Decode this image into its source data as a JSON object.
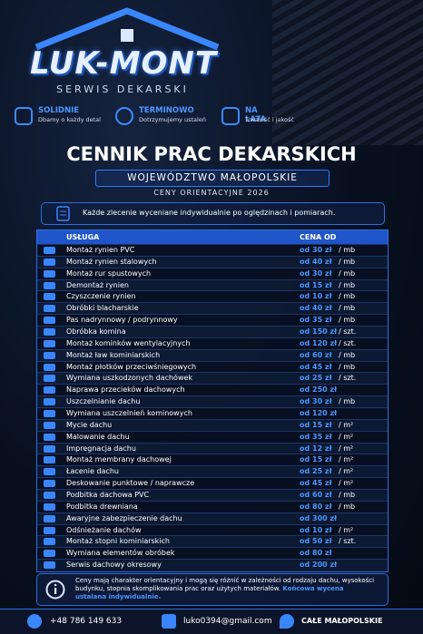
{
  "header": {
    "logo": "LUK-MONT",
    "tagline": "SERWIS DEKARSKI"
  },
  "features": [
    {
      "title": "SOLIDNIE",
      "text": "Dbamy o każdy detal"
    },
    {
      "title": "TERMINOWO",
      "text": "Dotrzymujemy ustaleń"
    },
    {
      "title": "NA LATA",
      "text": "Trwałość i jakość"
    }
  ],
  "title": "CENNIK PRAC DEKARSKICH",
  "region": "WOJEWÓDZTWO MAŁOPOLSKIE",
  "subtitle": "CENY ORIENTACYJNE 2026",
  "info": "Każde zlecenie wyceniane indywidualnie po oględzinach i pomiarach.",
  "table": {
    "columns": [
      "USŁUGA",
      "CENA OD"
    ],
    "rows": [
      [
        "Montaż rynien PVC",
        "od 30 zł",
        "/ mb"
      ],
      [
        "Montaż rynien stalowych",
        "od 40 zł",
        "/ mb"
      ],
      [
        "Montaż rur spustowych",
        "od 30 zł",
        "/ mb"
      ],
      [
        "Demontaż rynien",
        "od 15 zł",
        "/ mb"
      ],
      [
        "Czyszczenie rynien",
        "od 10 zł",
        "/ mb"
      ],
      [
        "Obróbki blacharskie",
        "od 40 zł",
        "/ mb"
      ],
      [
        "Pas nadrynnowy / podrynnowy",
        "od 35 zł",
        "/ mb"
      ],
      [
        "Obróbka komina",
        "od 150 zł",
        "/ szt."
      ],
      [
        "Montaż kominków wentylacyjnych",
        "od 120 zł",
        "/ szt."
      ],
      [
        "Montaż ław kominiarskich",
        "od 60 zł",
        "/ mb"
      ],
      [
        "Montaż płotków przeciwśniegowych",
        "od 45 zł",
        "/ mb"
      ],
      [
        "Wymiana uszkodzonych dachówek",
        "od 25 zł",
        "/ szt."
      ],
      [
        "Naprawa przecieków dachowych",
        "od 250 zł"
      ],
      [
        "Uszczelnianie dachu",
        "od 30 zł",
        "/ mb"
      ],
      [
        "Wymiana uszczelnień kominowych",
        "od 120 zł"
      ],
      [
        "Mycie dachu",
        "od 15 zł",
        "/ m²"
      ],
      [
        "Malowanie dachu",
        "od 35 zł",
        "/ m²"
      ],
      [
        "Impregnacja dachu",
        "od 12 zł",
        "/ m²"
      ],
      [
        "Montaż membrany dachowej",
        "od 15 zł",
        "/ m²"
      ],
      [
        "Łacenie dachu",
        "od 25 zł",
        "/ m²"
      ],
      [
        "Deskowanie punktowe / naprawcze",
        "od 45 zł",
        "/ m²"
      ],
      [
        "Podbitka dachowa PVC",
        "od 60 zł",
        "/ mb"
      ],
      [
        "Podbitka drewniana",
        "od 80 zł",
        "/ mb"
      ],
      [
        "Awaryjne zabezpieczenie dachu",
        "od 300 zł"
      ],
      [
        "Odśnieżanie dachów",
        "od 10 zł",
        "/ m²"
      ],
      [
        "Montaż stopni kominiarskich",
        "od 50 zł",
        "/ szt."
      ],
      [
        "Wymiana elementów obróbek",
        "od 80 zł"
      ],
      [
        "Serwis dachowy okresowy",
        "od 200 zł"
      ]
    ]
  },
  "note": {
    "text": "Ceny mają charakter orientacyjny i mogą się różnić w zależności od rodzaju dachu, wysokości budynku, stopnia skomplikowania prac oraz użytych materiałów.",
    "highlight": "Końcowa wycena ustalana indywidualnie."
  },
  "contact": {
    "phone": "+48 786 149 633",
    "email": "luko0394@gmail.com",
    "area": "CAŁE MAŁOPOLSKIE"
  }
}
